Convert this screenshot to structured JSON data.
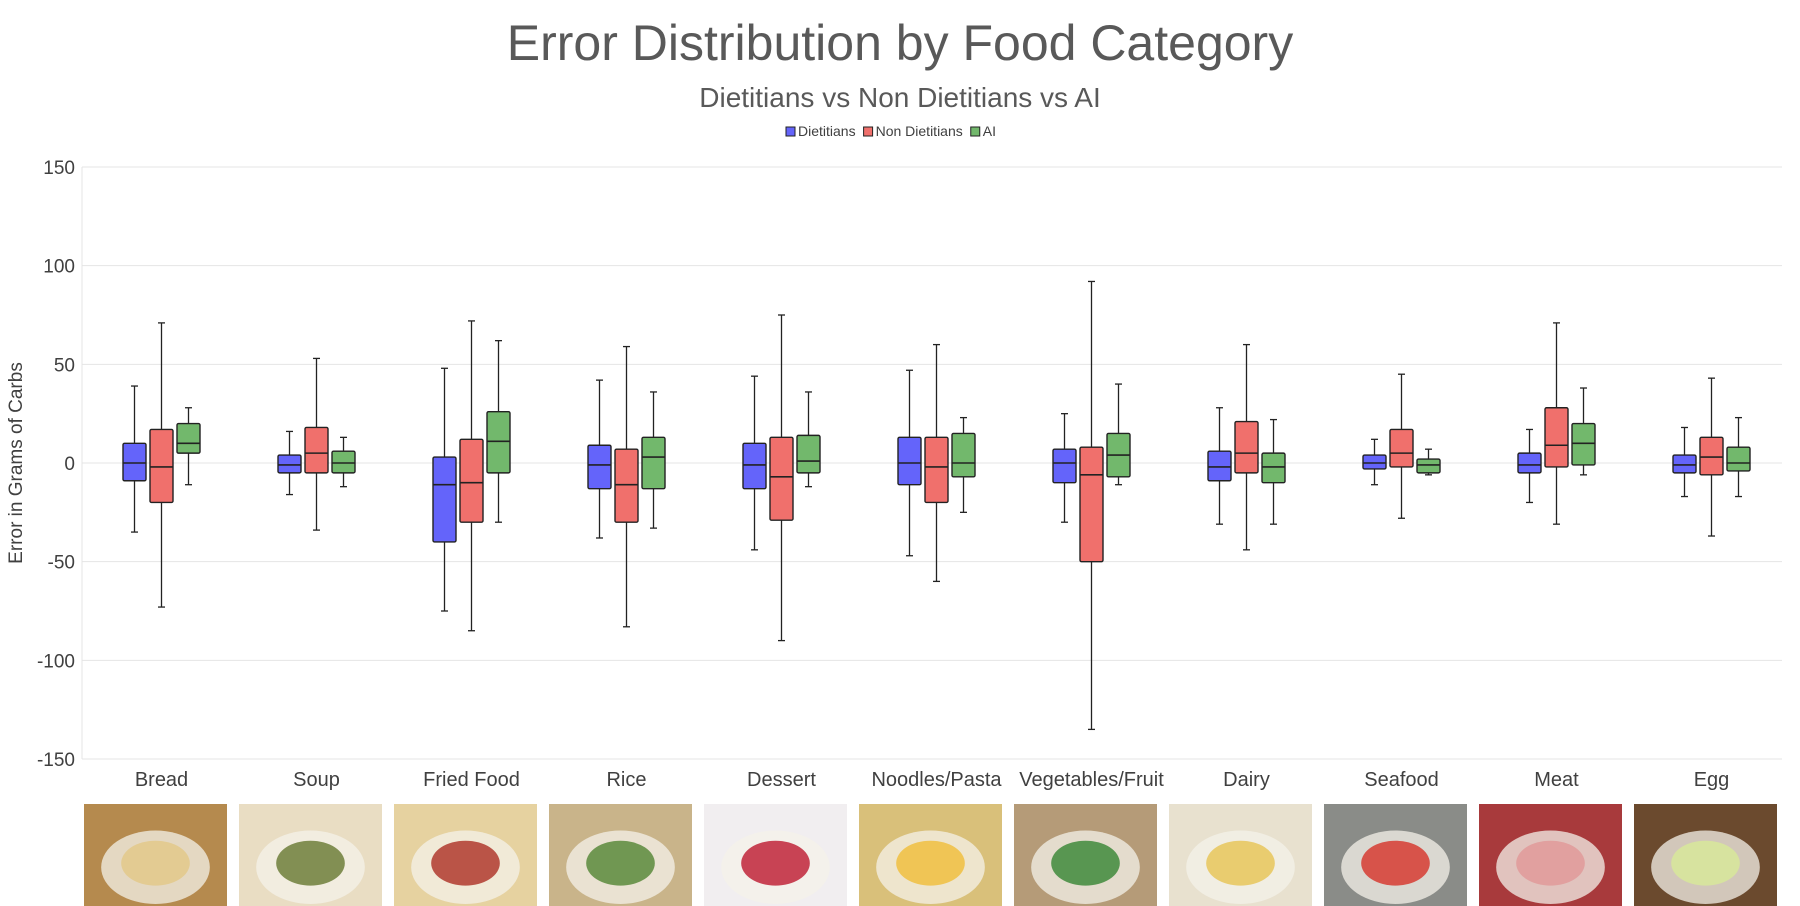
{
  "chart_data": {
    "type": "boxplot",
    "title": "Error Distribution by Food Category",
    "subtitle": "Dietitians vs Non Dietitians vs AI",
    "ylabel": "Error in Grams of Carbs",
    "ylim": [
      -150,
      150
    ],
    "yticks": [
      150,
      100,
      50,
      0,
      -50,
      -100,
      -150
    ],
    "ytick_labels": [
      "150",
      "100",
      "50",
      "0",
      "-50",
      "-100",
      "-150"
    ],
    "grid": true,
    "legend_position": "top",
    "categories": [
      "Bread",
      "Soup",
      "Fried Food",
      "Rice",
      "Dessert",
      "Noodles/Pasta",
      "Vegetables/Fruit",
      "Dairy",
      "Seafood",
      "Meat",
      "Egg"
    ],
    "series": [
      {
        "name": "Dietitians",
        "color": "#6464fa",
        "boxes": [
          {
            "min": -35,
            "q1": -9,
            "median": 0,
            "q3": 10,
            "max": 39
          },
          {
            "min": -16,
            "q1": -5,
            "median": -1,
            "q3": 4,
            "max": 16
          },
          {
            "min": -75,
            "q1": -40,
            "median": -11,
            "q3": 3,
            "max": 48
          },
          {
            "min": -38,
            "q1": -13,
            "median": -1,
            "q3": 9,
            "max": 42
          },
          {
            "min": -44,
            "q1": -13,
            "median": -1,
            "q3": 10,
            "max": 44
          },
          {
            "min": -47,
            "q1": -11,
            "median": 0,
            "q3": 13,
            "max": 47
          },
          {
            "min": -30,
            "q1": -10,
            "median": 0,
            "q3": 7,
            "max": 25
          },
          {
            "min": -31,
            "q1": -9,
            "median": -2,
            "q3": 6,
            "max": 28
          },
          {
            "min": -11,
            "q1": -3,
            "median": 0,
            "q3": 4,
            "max": 12
          },
          {
            "min": -20,
            "q1": -5,
            "median": -1,
            "q3": 5,
            "max": 17
          },
          {
            "min": -17,
            "q1": -5,
            "median": -1,
            "q3": 4,
            "max": 18
          }
        ]
      },
      {
        "name": "Non Dietitians",
        "color": "#f0706c",
        "boxes": [
          {
            "min": -73,
            "q1": -20,
            "median": -2,
            "q3": 17,
            "max": 71
          },
          {
            "min": -34,
            "q1": -5,
            "median": 5,
            "q3": 18,
            "max": 53
          },
          {
            "min": -85,
            "q1": -30,
            "median": -10,
            "q3": 12,
            "max": 72
          },
          {
            "min": -83,
            "q1": -30,
            "median": -11,
            "q3": 7,
            "max": 59
          },
          {
            "min": -90,
            "q1": -29,
            "median": -7,
            "q3": 13,
            "max": 75
          },
          {
            "min": -60,
            "q1": -20,
            "median": -2,
            "q3": 13,
            "max": 60
          },
          {
            "min": -135,
            "q1": -50,
            "median": -6,
            "q3": 8,
            "max": 92
          },
          {
            "min": -44,
            "q1": -5,
            "median": 5,
            "q3": 21,
            "max": 60
          },
          {
            "min": -28,
            "q1": -2,
            "median": 5,
            "q3": 17,
            "max": 45
          },
          {
            "min": -31,
            "q1": -2,
            "median": 9,
            "q3": 28,
            "max": 71
          },
          {
            "min": -37,
            "q1": -6,
            "median": 3,
            "q3": 13,
            "max": 43
          }
        ]
      },
      {
        "name": "AI",
        "color": "#72b86c",
        "boxes": [
          {
            "min": -11,
            "q1": 5,
            "median": 10,
            "q3": 20,
            "max": 28
          },
          {
            "min": -12,
            "q1": -5,
            "median": 0,
            "q3": 6,
            "max": 13
          },
          {
            "min": -30,
            "q1": -5,
            "median": 11,
            "q3": 26,
            "max": 62
          },
          {
            "min": -33,
            "q1": -13,
            "median": 3,
            "q3": 13,
            "max": 36
          },
          {
            "min": -12,
            "q1": -5,
            "median": 1,
            "q3": 14,
            "max": 36
          },
          {
            "min": -25,
            "q1": -7,
            "median": 0,
            "q3": 15,
            "max": 23
          },
          {
            "min": -11,
            "q1": -7,
            "median": 4,
            "q3": 15,
            "max": 40
          },
          {
            "min": -31,
            "q1": -10,
            "median": -2,
            "q3": 5,
            "max": 22
          },
          {
            "min": -6,
            "q1": -5,
            "median": -1,
            "q3": 2,
            "max": 7
          },
          {
            "min": -6,
            "q1": -1,
            "median": 10,
            "q3": 20,
            "max": 38
          },
          {
            "min": -17,
            "q1": -4,
            "median": 0,
            "q3": 8,
            "max": 23
          }
        ]
      }
    ]
  },
  "category_images": [
    {
      "category": "Bread",
      "icon": "garlic-bread-photo",
      "bg": "#b58a4e",
      "accent": "#e3c989"
    },
    {
      "category": "Soup",
      "icon": "cream-soup-photo",
      "bg": "#e9ddc3",
      "accent": "#6e7e3a"
    },
    {
      "category": "Fried Food",
      "icon": "french-fries-photo",
      "bg": "#e6d2a0",
      "accent": "#b03a2e"
    },
    {
      "category": "Rice",
      "icon": "fried-rice-photo",
      "bg": "#c9b48a",
      "accent": "#5b8a3c"
    },
    {
      "category": "Dessert",
      "icon": "frozen-yogurt-photo",
      "bg": "#f1eef0",
      "accent": "#c0243a"
    },
    {
      "category": "Noodles/Pasta",
      "icon": "macaroni-photo",
      "bg": "#d9c07a",
      "accent": "#f0c040"
    },
    {
      "category": "Vegetables/Fruit",
      "icon": "salad-photo",
      "bg": "#b59b78",
      "accent": "#3f8a3b"
    },
    {
      "category": "Dairy",
      "icon": "cheese-plate-photo",
      "bg": "#e8e1cf",
      "accent": "#e8c55a"
    },
    {
      "category": "Seafood",
      "icon": "oysters-photo",
      "bg": "#8a8c88",
      "accent": "#d63c32"
    },
    {
      "category": "Meat",
      "icon": "steak-photo",
      "bg": "#a83a3c",
      "accent": "#e09a9a"
    },
    {
      "category": "Egg",
      "icon": "deviled-egg-photo",
      "bg": "#6b4a2e",
      "accent": "#d8e89a"
    }
  ]
}
